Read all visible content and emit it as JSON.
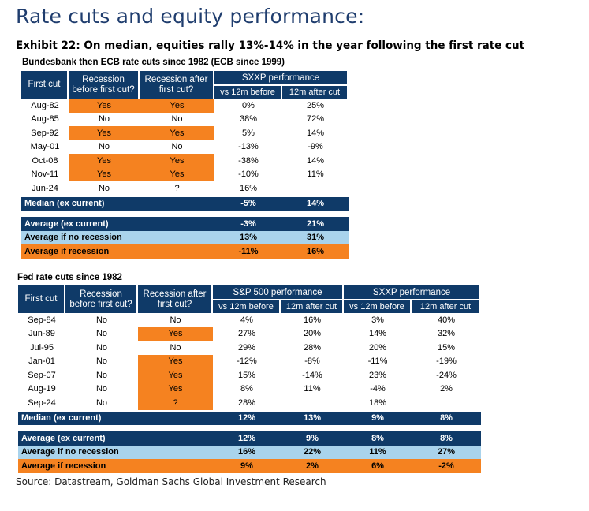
{
  "title": "Rate cuts and equity performance:",
  "exhibit": "Exhibit 22: On median, equities rally 13%-14% in the year following the first rate cut",
  "table1": {
    "subtitle": "Bundesbank then ECB rate cuts since 1982 (ECB since 1999)",
    "col_first_cut": "First cut",
    "col_rec_before": [
      "Recession",
      "before first cut?"
    ],
    "col_rec_after": [
      "Recession after",
      "first cut?"
    ],
    "group": "SXXP performance",
    "col_before": "vs 12m before",
    "col_after": "12m after cut",
    "rows": [
      {
        "date": "Aug-82",
        "before": "Yes",
        "after": "Yes",
        "p_before": "0%",
        "p_after": "25%",
        "hl": true
      },
      {
        "date": "Aug-85",
        "before": "No",
        "after": "No",
        "p_before": "38%",
        "p_after": "72%",
        "hl": false
      },
      {
        "date": "Sep-92",
        "before": "Yes",
        "after": "Yes",
        "p_before": "5%",
        "p_after": "14%",
        "hl": true
      },
      {
        "date": "May-01",
        "before": "No",
        "after": "No",
        "p_before": "-13%",
        "p_after": "-9%",
        "hl": false
      },
      {
        "date": "Oct-08",
        "before": "Yes",
        "after": "Yes",
        "p_before": "-38%",
        "p_after": "14%",
        "hl": true
      },
      {
        "date": "Nov-11",
        "before": "Yes",
        "after": "Yes",
        "p_before": "-10%",
        "p_after": "11%",
        "hl": true
      },
      {
        "date": "Jun-24",
        "before": "No",
        "after": "?",
        "p_before": "16%",
        "p_after": "",
        "hl": false
      }
    ],
    "median": {
      "label": "Median (ex current)",
      "v1": "-5%",
      "v2": "14%"
    },
    "average": {
      "label": "Average (ex current)",
      "v1": "-3%",
      "v2": "21%"
    },
    "avg_no_rec": {
      "label": "Average if no recession",
      "v1": "13%",
      "v2": "31%"
    },
    "avg_rec": {
      "label": "Average if recession",
      "v1": "-11%",
      "v2": "16%"
    }
  },
  "table2": {
    "subtitle": "Fed rate cuts since 1982",
    "col_first_cut": "First cut",
    "col_rec_before": [
      "Recession",
      "before first cut?"
    ],
    "col_rec_after": [
      "Recession after",
      "first cut?"
    ],
    "group1": "S&P 500 performance",
    "group2": "SXXP performance",
    "col_before": "vs 12m before",
    "col_after": "12m after cut",
    "rows": [
      {
        "date": "Sep-84",
        "before": "No",
        "after": "No",
        "sp_b": "4%",
        "sp_a": "16%",
        "sx_b": "3%",
        "sx_a": "40%",
        "hl": false
      },
      {
        "date": "Jun-89",
        "before": "No",
        "after": "Yes",
        "sp_b": "27%",
        "sp_a": "20%",
        "sx_b": "14%",
        "sx_a": "32%",
        "hl": true
      },
      {
        "date": "Jul-95",
        "before": "No",
        "after": "No",
        "sp_b": "29%",
        "sp_a": "28%",
        "sx_b": "20%",
        "sx_a": "15%",
        "hl": false
      },
      {
        "date": "Jan-01",
        "before": "No",
        "after": "Yes",
        "sp_b": "-12%",
        "sp_a": "-8%",
        "sx_b": "-11%",
        "sx_a": "-19%",
        "hl": true
      },
      {
        "date": "Sep-07",
        "before": "No",
        "after": "Yes",
        "sp_b": "15%",
        "sp_a": "-14%",
        "sx_b": "23%",
        "sx_a": "-24%",
        "hl": true
      },
      {
        "date": "Aug-19",
        "before": "No",
        "after": "Yes",
        "sp_b": "8%",
        "sp_a": "11%",
        "sx_b": "-4%",
        "sx_a": "2%",
        "hl": true
      },
      {
        "date": "Sep-24",
        "before": "No",
        "after": "?",
        "sp_b": "28%",
        "sp_a": "",
        "sx_b": "18%",
        "sx_a": "",
        "hl": true
      }
    ],
    "median": {
      "label": "Median (ex current)",
      "v1": "12%",
      "v2": "13%",
      "v3": "9%",
      "v4": "8%"
    },
    "average": {
      "label": "Average (ex current)",
      "v1": "12%",
      "v2": "9%",
      "v3": "8%",
      "v4": "8%"
    },
    "avg_no_rec": {
      "label": "Average if no recession",
      "v1": "16%",
      "v2": "22%",
      "v3": "11%",
      "v4": "27%"
    },
    "avg_rec": {
      "label": "Average if recession",
      "v1": "9%",
      "v2": "2%",
      "v3": "6%",
      "v4": "-2%"
    }
  },
  "source": "Source: Datastream, Goldman Sachs Global Investment Research",
  "colors": {
    "navy": "#0f3a68",
    "orange": "#f58220",
    "light_blue": "#a9d3ec",
    "title": "#1f3d6e"
  }
}
